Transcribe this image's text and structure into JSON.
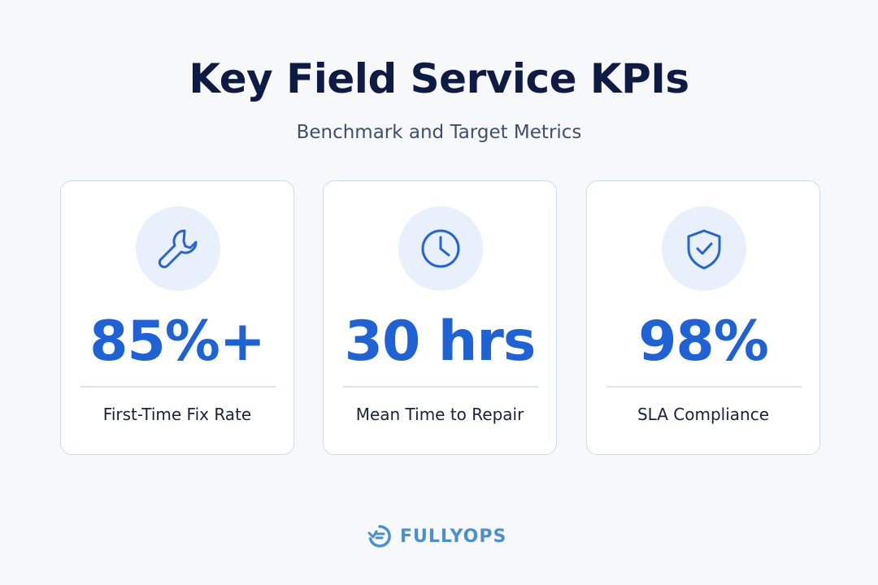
{
  "header": {
    "title": "Key Field Service KPIs",
    "subtitle": "Benchmark and Target Metrics"
  },
  "cards": [
    {
      "icon": "wrench-icon",
      "value": "85%+",
      "label": "First-Time Fix Rate"
    },
    {
      "icon": "clock-icon",
      "value": "30 hrs",
      "label": "Mean Time to Repair"
    },
    {
      "icon": "shield-check-icon",
      "value": "98%",
      "label": "SLA Compliance"
    }
  ],
  "brand": {
    "name": "FULLYOPS",
    "icon": "fullyops-logo-icon"
  },
  "colors": {
    "accent": "#1f62d6",
    "title": "#0d1b45",
    "icon_bg": "#e8f0fc",
    "card_border": "#c6dcf5",
    "brand": "#4a90d0"
  }
}
